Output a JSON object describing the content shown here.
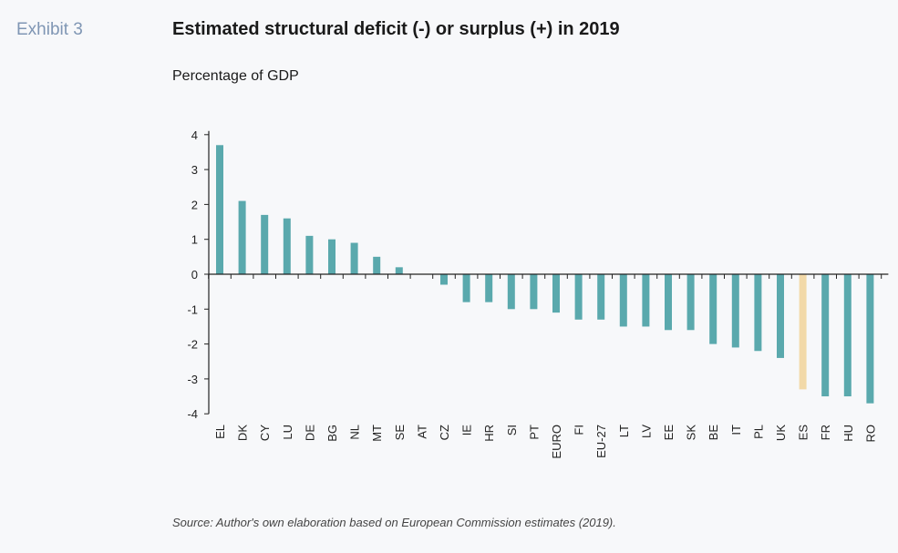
{
  "header": {
    "exhibit_label": "Exhibit 3",
    "title": "Estimated structural deficit (-) or surplus (+) in 2019",
    "subtitle": "Percentage of GDP"
  },
  "footer": {
    "source": "Source: Author's  own elaboration based on European Commission estimates (2019)."
  },
  "colors": {
    "bar": "#5aa9ad",
    "highlight": "#f2d9a8",
    "axis": "#222222"
  },
  "chart_data": {
    "type": "bar",
    "title": "Estimated structural deficit (-) or surplus (+) in 2019",
    "ylabel": "Percentage of GDP",
    "xlabel": "",
    "ylim": [
      -4,
      4
    ],
    "yticks": [
      4,
      3,
      2,
      1,
      0,
      -1,
      -2,
      -3,
      -4
    ],
    "grid": false,
    "categories": [
      "EL",
      "DK",
      "CY",
      "LU",
      "DE",
      "BG",
      "NL",
      "MT",
      "SE",
      "AT",
      "CZ",
      "IE",
      "HR",
      "SI",
      "PT",
      "EURO",
      "FI",
      "EU-27",
      "LT",
      "LV",
      "EE",
      "SK",
      "BE",
      "IT",
      "PL",
      "UK",
      "ES",
      "FR",
      "HU",
      "RO"
    ],
    "values": [
      3.7,
      2.1,
      1.7,
      1.6,
      1.1,
      1.0,
      0.9,
      0.5,
      0.2,
      0.0,
      -0.3,
      -0.8,
      -0.8,
      -1.0,
      -1.0,
      -1.1,
      -1.3,
      -1.3,
      -1.5,
      -1.5,
      -1.6,
      -1.6,
      -2.0,
      -2.1,
      -2.2,
      -2.4,
      -3.3,
      -3.5,
      -3.5,
      -3.7
    ],
    "highlight_category": "ES"
  }
}
